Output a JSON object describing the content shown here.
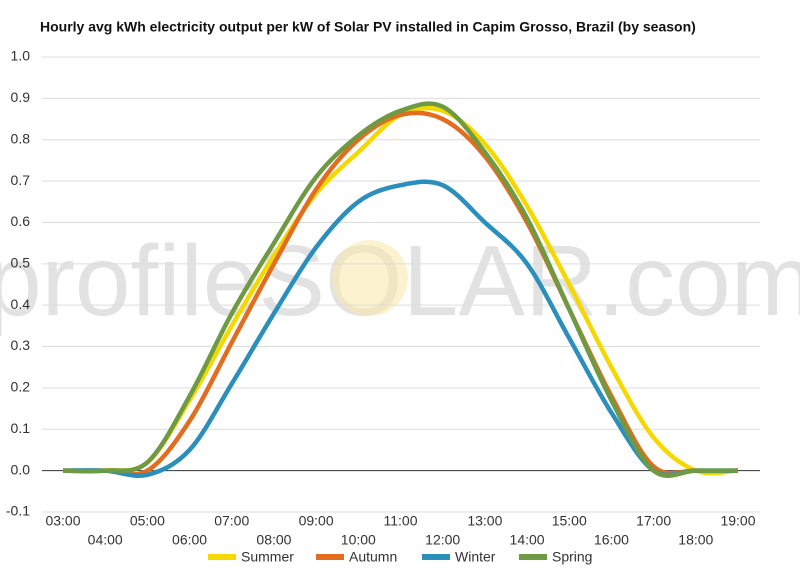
{
  "chart_data": {
    "type": "line",
    "title": "Hourly avg kWh electricity output per kW of Solar PV installed in Capim Grosso, Brazil (by season)",
    "watermark": "profileSOLAR.com",
    "categories": [
      "03:00",
      "04:00",
      "05:00",
      "06:00",
      "07:00",
      "08:00",
      "09:00",
      "10:00",
      "11:00",
      "12:00",
      "13:00",
      "14:00",
      "15:00",
      "16:00",
      "17:00",
      "18:00",
      "19:00"
    ],
    "series": [
      {
        "name": "Summer",
        "color": "#f5d800",
        "values": [
          0,
          0,
          0.02,
          0.17,
          0.35,
          0.52,
          0.67,
          0.77,
          0.86,
          0.87,
          0.79,
          0.64,
          0.45,
          0.25,
          0.08,
          0.0,
          0
        ]
      },
      {
        "name": "Autumn",
        "color": "#e36c1e",
        "values": [
          0,
          0,
          0.0,
          0.12,
          0.31,
          0.5,
          0.68,
          0.8,
          0.86,
          0.85,
          0.76,
          0.6,
          0.39,
          0.18,
          0.01,
          0.0,
          0
        ]
      },
      {
        "name": "Winter",
        "color": "#2a8fbd",
        "values": [
          0,
          0,
          -0.01,
          0.05,
          0.21,
          0.38,
          0.54,
          0.65,
          0.69,
          0.69,
          0.6,
          0.5,
          0.32,
          0.14,
          0.0,
          0.0,
          0
        ]
      },
      {
        "name": "Spring",
        "color": "#6e9a44",
        "values": [
          0,
          0,
          0.02,
          0.18,
          0.38,
          0.55,
          0.71,
          0.81,
          0.87,
          0.88,
          0.77,
          0.61,
          0.39,
          0.17,
          0.0,
          0.0,
          0
        ]
      }
    ],
    "ylim": [
      -0.1,
      1.0
    ],
    "yticks": [
      -0.1,
      {
        "value": 0,
        "label": "0.0"
      },
      0.1,
      0.2,
      0.3,
      0.4,
      0.5,
      0.6,
      0.7,
      0.8,
      0.9,
      {
        "value": 1,
        "label": "1.0"
      }
    ],
    "grid": true,
    "legend": "bottom"
  }
}
